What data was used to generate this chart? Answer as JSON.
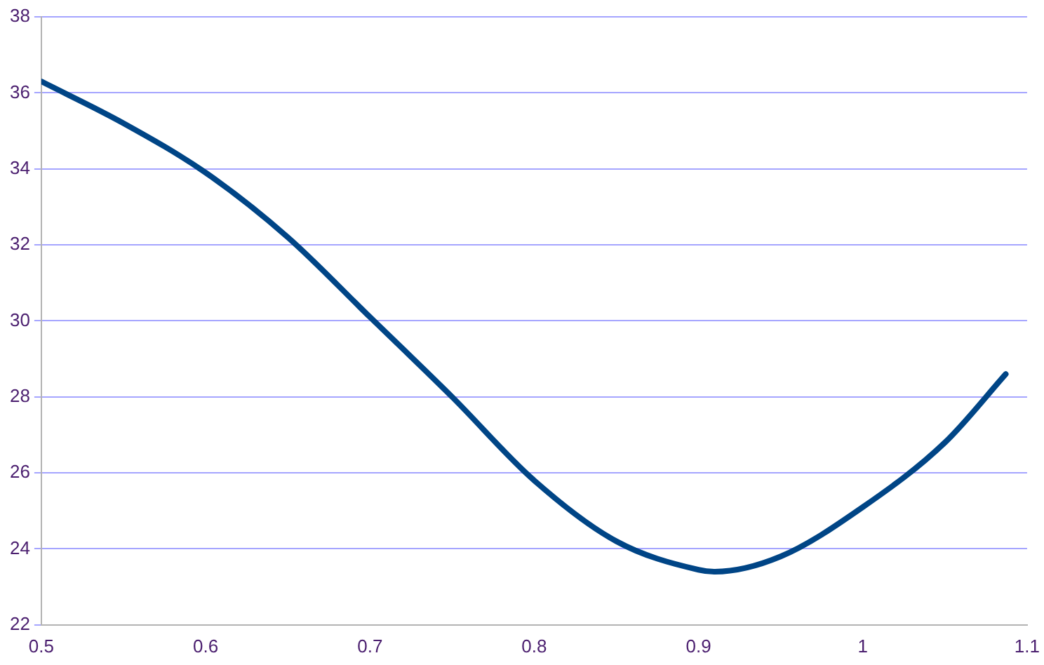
{
  "chart_data": {
    "type": "line",
    "x": [
      0.5,
      0.55,
      0.6,
      0.65,
      0.7,
      0.75,
      0.8,
      0.85,
      0.9,
      0.91,
      0.95,
      1.0,
      1.05,
      1.087
    ],
    "series": [
      {
        "color": "#004586",
        "values": [
          36.3,
          35.2,
          33.9,
          32.2,
          30.1,
          28.0,
          25.8,
          24.2,
          23.45,
          23.4,
          23.8,
          25.1,
          26.8,
          28.6
        ]
      }
    ],
    "xlim": [
      0.5,
      1.1
    ],
    "xticks": [
      0.5,
      0.6,
      0.7,
      0.8,
      0.9,
      1,
      1.1
    ],
    "ylim": [
      22,
      38
    ],
    "yticks": [
      22,
      24,
      26,
      28,
      30,
      32,
      34,
      36,
      38
    ],
    "grid": "y",
    "legend": false,
    "marker": "none",
    "line_style": "solid"
  }
}
